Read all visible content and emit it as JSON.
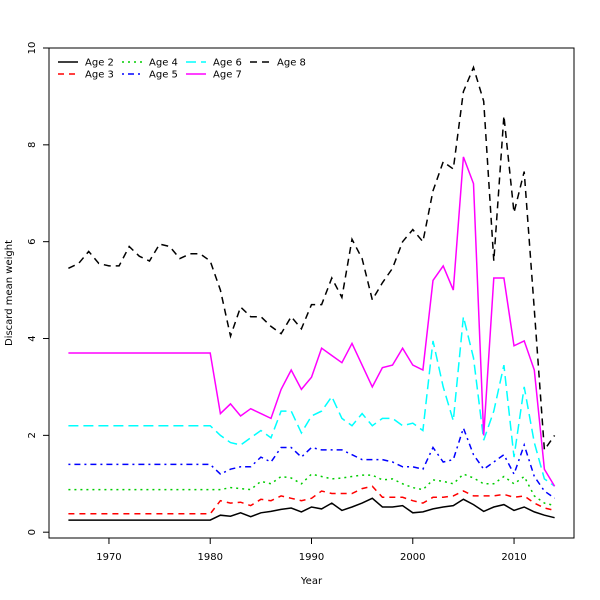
{
  "chart_data": {
    "type": "line",
    "title": "",
    "xlabel": "Year",
    "ylabel": "Discard mean weight",
    "xlim": [
      1964.08,
      2015.92
    ],
    "ylim": [
      -0.12,
      10.0
    ],
    "xticks": [
      1970,
      1980,
      1990,
      2000,
      2010
    ],
    "yticks": [
      0,
      2,
      4,
      6,
      8,
      10
    ],
    "grid": false,
    "legend_placement": "top-left",
    "x_start": 1966,
    "x_end": 2014,
    "series": [
      {
        "name": "Age 2",
        "color": "#000000",
        "dash": "",
        "values": [
          0.25,
          0.25,
          0.25,
          0.25,
          0.25,
          0.25,
          0.25,
          0.25,
          0.25,
          0.25,
          0.25,
          0.25,
          0.25,
          0.25,
          0.25,
          0.35,
          0.33,
          0.4,
          0.32,
          0.4,
          0.43,
          0.47,
          0.5,
          0.42,
          0.52,
          0.48,
          0.6,
          0.45,
          0.52,
          0.6,
          0.7,
          0.52,
          0.52,
          0.55,
          0.4,
          0.42,
          0.48,
          0.52,
          0.55,
          0.68,
          0.57,
          0.43,
          0.52,
          0.57,
          0.45,
          0.52,
          0.42,
          0.35,
          0.3
        ]
      },
      {
        "name": "Age 3",
        "color": "#ff0000",
        "dash": "6 5",
        "values": [
          0.38,
          0.38,
          0.38,
          0.38,
          0.38,
          0.38,
          0.38,
          0.38,
          0.38,
          0.38,
          0.38,
          0.38,
          0.38,
          0.38,
          0.38,
          0.65,
          0.6,
          0.62,
          0.55,
          0.68,
          0.65,
          0.75,
          0.7,
          0.65,
          0.7,
          0.85,
          0.8,
          0.8,
          0.8,
          0.9,
          0.95,
          0.72,
          0.72,
          0.72,
          0.65,
          0.6,
          0.72,
          0.72,
          0.75,
          0.85,
          0.75,
          0.75,
          0.75,
          0.78,
          0.72,
          0.75,
          0.6,
          0.5,
          0.45
        ]
      },
      {
        "name": "Age 4",
        "color": "#00cd00",
        "dash": "2 4",
        "values": [
          0.88,
          0.88,
          0.88,
          0.88,
          0.88,
          0.88,
          0.88,
          0.88,
          0.88,
          0.88,
          0.88,
          0.88,
          0.88,
          0.88,
          0.88,
          0.88,
          0.92,
          0.9,
          0.88,
          1.05,
          1.0,
          1.15,
          1.12,
          1.0,
          1.2,
          1.15,
          1.1,
          1.12,
          1.15,
          1.18,
          1.18,
          1.08,
          1.1,
          1.0,
          0.92,
          0.88,
          1.08,
          1.05,
          1.0,
          1.2,
          1.12,
          1.0,
          1.0,
          1.15,
          1.0,
          1.15,
          0.75,
          0.6,
          0.55
        ]
      },
      {
        "name": "Age 5",
        "color": "#0000ff",
        "dash": "2 4 6 4",
        "values": [
          1.4,
          1.4,
          1.4,
          1.4,
          1.4,
          1.4,
          1.4,
          1.4,
          1.4,
          1.4,
          1.4,
          1.4,
          1.4,
          1.4,
          1.4,
          1.2,
          1.3,
          1.35,
          1.35,
          1.55,
          1.45,
          1.75,
          1.75,
          1.55,
          1.75,
          1.7,
          1.7,
          1.7,
          1.6,
          1.5,
          1.5,
          1.5,
          1.45,
          1.35,
          1.35,
          1.3,
          1.75,
          1.45,
          1.5,
          2.15,
          1.6,
          1.3,
          1.45,
          1.6,
          1.2,
          1.8,
          1.15,
          0.85,
          0.7
        ]
      },
      {
        "name": "Age 6",
        "color": "#00ffff",
        "dash": "10 5",
        "values": [
          2.2,
          2.2,
          2.2,
          2.2,
          2.2,
          2.2,
          2.2,
          2.2,
          2.2,
          2.2,
          2.2,
          2.2,
          2.2,
          2.2,
          2.2,
          2.0,
          1.85,
          1.8,
          1.95,
          2.1,
          1.95,
          2.5,
          2.5,
          2.05,
          2.4,
          2.5,
          2.8,
          2.35,
          2.2,
          2.45,
          2.2,
          2.35,
          2.35,
          2.2,
          2.25,
          2.1,
          3.95,
          3.0,
          2.3,
          4.45,
          3.6,
          1.9,
          2.5,
          3.45,
          1.55,
          3.0,
          1.85,
          1.1,
          0.95
        ]
      },
      {
        "name": "Age 7",
        "color": "#ff00ff",
        "dash": "",
        "values": [
          3.7,
          3.7,
          3.7,
          3.7,
          3.7,
          3.7,
          3.7,
          3.7,
          3.7,
          3.7,
          3.7,
          3.7,
          3.7,
          3.7,
          3.7,
          2.45,
          2.65,
          2.4,
          2.55,
          2.45,
          2.35,
          2.95,
          3.35,
          2.95,
          3.2,
          3.8,
          3.65,
          3.5,
          3.9,
          3.45,
          3.0,
          3.4,
          3.45,
          3.8,
          3.45,
          3.35,
          5.2,
          5.5,
          5.0,
          7.75,
          7.2,
          2.0,
          5.25,
          5.25,
          3.85,
          3.95,
          3.35,
          1.3,
          0.95
        ]
      },
      {
        "name": "Age 8",
        "color": "#000000",
        "dash": "7 5",
        "values": [
          5.45,
          5.55,
          5.8,
          5.55,
          5.5,
          5.5,
          5.9,
          5.7,
          5.6,
          5.95,
          5.9,
          5.65,
          5.75,
          5.75,
          5.6,
          5.0,
          4.05,
          4.65,
          4.45,
          4.45,
          4.25,
          4.1,
          4.45,
          4.2,
          4.7,
          4.7,
          5.25,
          4.85,
          6.05,
          5.65,
          4.8,
          5.15,
          5.45,
          6.0,
          6.25,
          6.0,
          7.05,
          7.65,
          7.5,
          9.1,
          9.6,
          8.9,
          5.6,
          8.6,
          6.6,
          7.45,
          4.6,
          1.7,
          2.0
        ]
      }
    ]
  }
}
